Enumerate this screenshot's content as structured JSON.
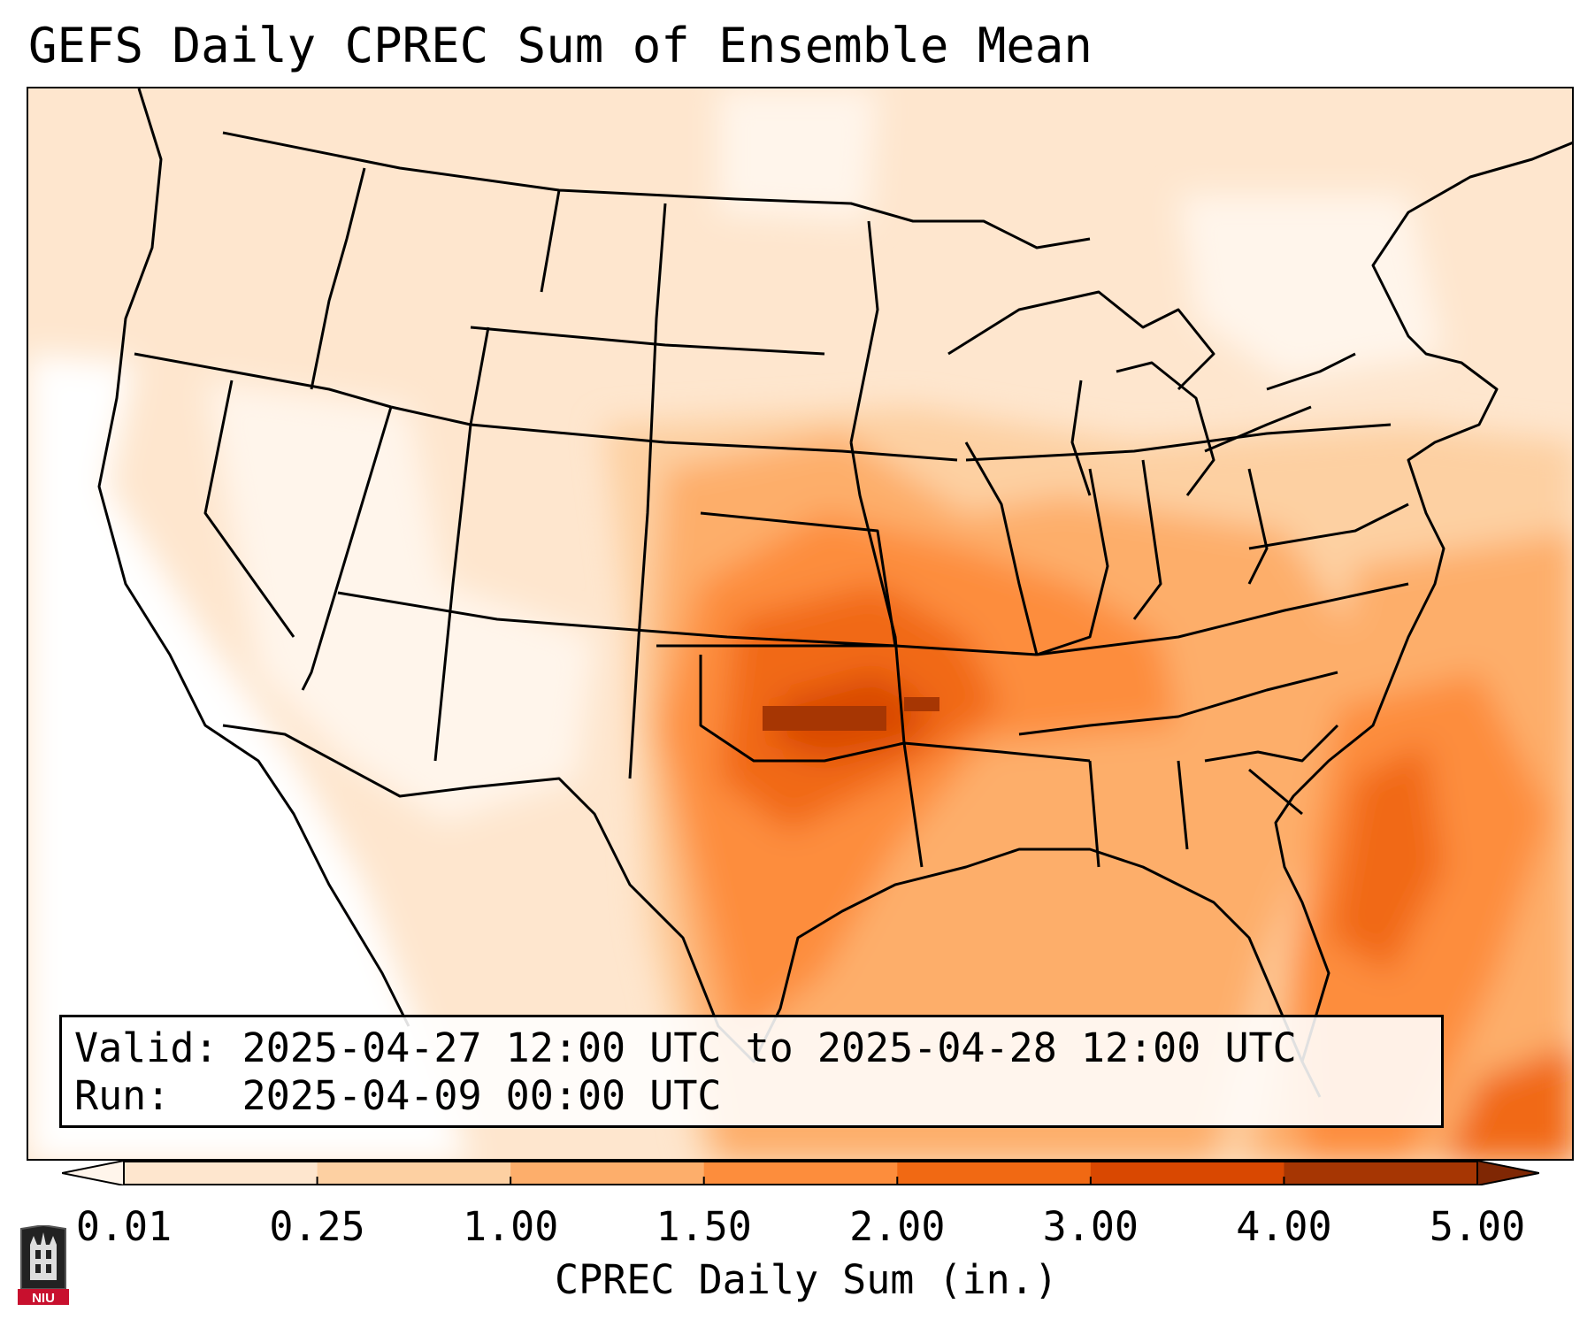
{
  "title": "GEFS Daily CPREC Sum of Ensemble Mean",
  "valid_box": {
    "valid_label": "Valid:",
    "valid_value": "2025-04-27 12:00 UTC to 2025-04-28 12:00 UTC",
    "run_label": "Run:",
    "run_value": "2025-04-09 00:00 UTC"
  },
  "colorbar": {
    "label": "CPREC Daily Sum (in.)",
    "ticks": [
      "0.01",
      "0.25",
      "1.00",
      "1.50",
      "2.00",
      "3.00",
      "4.00",
      "5.00"
    ],
    "colors": [
      "#fff5eb",
      "#fee6ce",
      "#fdd0a2",
      "#fdae6b",
      "#fd8d3c",
      "#f16913",
      "#d94801",
      "#a63603",
      "#7f2704"
    ]
  },
  "logo": {
    "text": "NIU",
    "color": "#c8102e"
  },
  "map": {
    "region": "Contiguous United States",
    "variable": "CPREC",
    "units": "in."
  }
}
